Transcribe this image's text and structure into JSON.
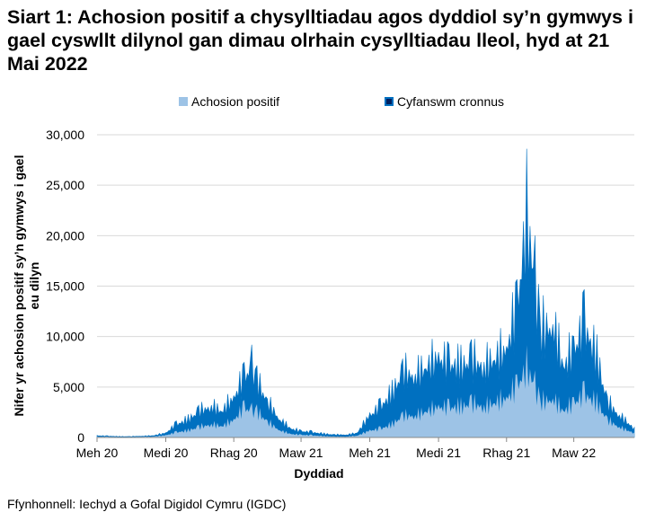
{
  "chart_data": {
    "type": "area",
    "title": "Siart 1: Achosion positif a chysylltiadau agos dyddiol sy’n gymwys i gael cyswllt dilynol gan dimau olrhain cysylltiadau lleol, hyd at 21 Mai 2022",
    "xlabel": "Dyddiad",
    "ylabel": "Nifer yr achosion positif sy’n gymwys i gael eu dilyn",
    "ylim": [
      0,
      30000
    ],
    "xlim": [
      "2020-06-01",
      "2022-05-21"
    ],
    "yticks": [
      0,
      5000,
      10000,
      15000,
      20000,
      25000,
      30000
    ],
    "ytick_labels": [
      "0",
      "5,000",
      "10,000",
      "15,000",
      "20,000",
      "25,000",
      "30,000"
    ],
    "xticks": [
      {
        "date": "2020-06-01",
        "label": "Meh 20"
      },
      {
        "date": "2020-09-01",
        "label": "Medi 20"
      },
      {
        "date": "2020-12-01",
        "label": "Rhag 20"
      },
      {
        "date": "2021-03-01",
        "label": "Maw 21"
      },
      {
        "date": "2021-06-01",
        "label": "Meh 21"
      },
      {
        "date": "2021-09-01",
        "label": "Medi 21"
      },
      {
        "date": "2021-12-01",
        "label": "Rhag 21"
      },
      {
        "date": "2022-03-01",
        "label": "Maw 22"
      }
    ],
    "legend_position": "top",
    "grid": true,
    "dates": [
      "2020-06-01",
      "2020-06-15",
      "2020-07-01",
      "2020-07-15",
      "2020-08-01",
      "2020-08-15",
      "2020-09-01",
      "2020-09-15",
      "2020-10-01",
      "2020-10-15",
      "2020-11-01",
      "2020-11-15",
      "2020-12-01",
      "2020-12-15",
      "2020-12-25",
      "2021-01-01",
      "2021-01-15",
      "2021-02-01",
      "2021-02-15",
      "2021-03-01",
      "2021-03-15",
      "2021-04-01",
      "2021-04-15",
      "2021-05-01",
      "2021-05-15",
      "2021-06-01",
      "2021-06-15",
      "2021-07-01",
      "2021-07-15",
      "2021-08-01",
      "2021-08-15",
      "2021-09-01",
      "2021-09-15",
      "2021-10-01",
      "2021-10-15",
      "2021-11-01",
      "2021-11-15",
      "2021-12-01",
      "2021-12-15",
      "2021-12-28",
      "2022-01-08",
      "2022-01-15",
      "2022-02-01",
      "2022-02-15",
      "2022-03-01",
      "2022-03-15",
      "2022-04-01",
      "2022-04-15",
      "2022-05-01",
      "2022-05-21"
    ],
    "series": [
      {
        "name": "Cyfanswm cronnus",
        "color": "#0070c0",
        "values": [
          200,
          150,
          100,
          100,
          150,
          200,
          500,
          1500,
          2000,
          3000,
          3500,
          3000,
          4500,
          7000,
          8000,
          6500,
          4000,
          2000,
          1000,
          700,
          600,
          400,
          300,
          300,
          500,
          2500,
          3500,
          5000,
          7500,
          7000,
          8000,
          9000,
          8500,
          8000,
          9000,
          8000,
          9000,
          10000,
          15000,
          25000,
          18000,
          12000,
          13000,
          8000,
          10000,
          13000,
          9000,
          4000,
          2500,
          1000
        ]
      },
      {
        "name": "Achosion positif",
        "color": "#9dc3e6",
        "values": [
          100,
          80,
          50,
          50,
          80,
          100,
          250,
          600,
          800,
          1200,
          1500,
          1300,
          2000,
          3500,
          3000,
          3000,
          1800,
          800,
          400,
          300,
          250,
          150,
          100,
          100,
          200,
          800,
          1000,
          1500,
          2500,
          2500,
          3000,
          3500,
          3500,
          3500,
          4000,
          3500,
          4000,
          4500,
          6000,
          8000,
          6000,
          4000,
          4500,
          3000,
          4000,
          5000,
          4000,
          2000,
          1200,
          500
        ]
      }
    ]
  },
  "source": "Ffynhonnell: Iechyd a Gofal Digidol Cymru (IGDC)"
}
